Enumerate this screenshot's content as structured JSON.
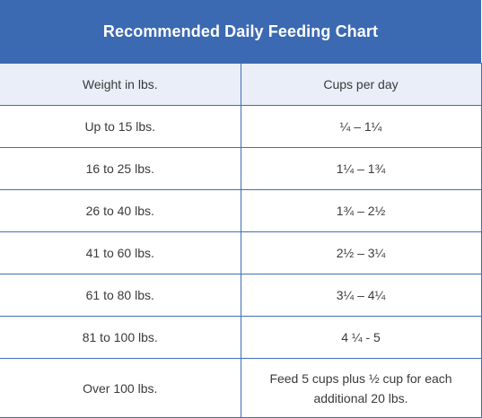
{
  "title": "Recommended Daily Feeding Chart",
  "headers": {
    "weight": "Weight in lbs.",
    "cups": "Cups per day"
  },
  "rows": [
    {
      "weight": "Up to 15 lbs.",
      "cups": "¼ – 1¼"
    },
    {
      "weight": "16 to 25 lbs.",
      "cups": "1¼ – 1¾"
    },
    {
      "weight": "26 to 40 lbs.",
      "cups": "1¾ – 2½"
    },
    {
      "weight": "41 to 60 lbs.",
      "cups": "2½ – 3¼"
    },
    {
      "weight": "61 to 80 lbs.",
      "cups": "3¼ – 4¼"
    },
    {
      "weight": "81 to 100 lbs.",
      "cups": "4 ¼ - 5"
    },
    {
      "weight": "Over 100 lbs.",
      "cups": "Feed 5 cups plus ½ cup for each additional 20 lbs."
    }
  ],
  "colors": {
    "header_bg": "#3b69b2",
    "subheader_bg": "#e9eef8",
    "border": "#3e6fb8"
  }
}
